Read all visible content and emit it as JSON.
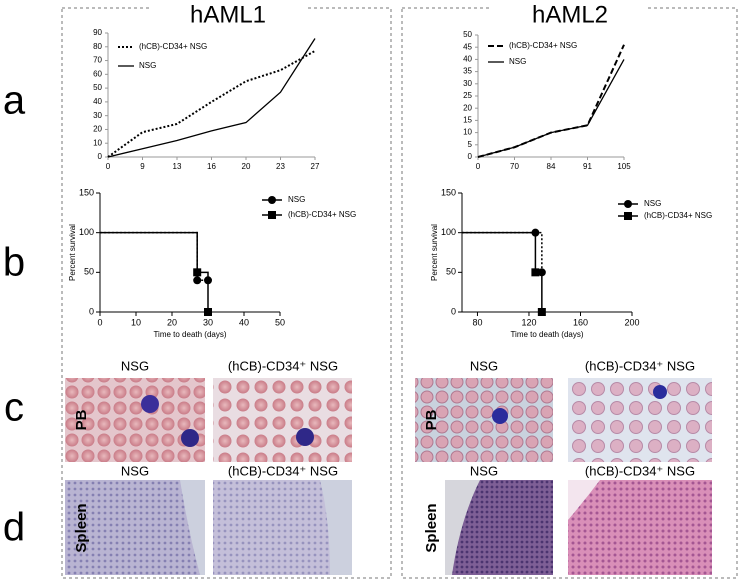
{
  "titles": [
    "hAML1",
    "hAML2"
  ],
  "row_labels": [
    "a",
    "b",
    "c",
    "d"
  ],
  "chart_data": [
    {
      "type": "line",
      "categories": [
        "0",
        "9",
        "13",
        "16",
        "20",
        "23",
        "27"
      ],
      "ylim": [
        0,
        90
      ],
      "yticks": [
        0,
        10,
        20,
        30,
        40,
        50,
        60,
        70,
        80,
        90
      ],
      "series": [
        {
          "name": "(hCB)-CD34+ NSG",
          "color": "#000000",
          "line_style": "dotted",
          "values": [
            0,
            18,
            24,
            40,
            55,
            63,
            77
          ]
        },
        {
          "name": "NSG",
          "color": "#000000",
          "line_style": "solid",
          "values": [
            0,
            6,
            12,
            19,
            25,
            47,
            86
          ]
        }
      ]
    },
    {
      "type": "line",
      "categories": [
        "0",
        "70",
        "84",
        "91",
        "105"
      ],
      "ylim": [
        0,
        50
      ],
      "yticks": [
        0,
        5,
        10,
        15,
        20,
        25,
        30,
        35,
        40,
        45,
        50
      ],
      "series": [
        {
          "name": "(hCB)-CD34+ NSG",
          "color": "#000000",
          "line_style": "dashed",
          "values": [
            0,
            4,
            10,
            13,
            46
          ]
        },
        {
          "name": "NSG",
          "color": "#000000",
          "line_style": "solid",
          "values": [
            0,
            4,
            10,
            13,
            40
          ]
        }
      ]
    },
    {
      "type": "step",
      "xlabel": "Time to death (days)",
      "ylabel": "Percent survival",
      "xlim": [
        0,
        50
      ],
      "xticks": [
        0,
        10,
        20,
        30,
        40,
        50
      ],
      "ylim": [
        0,
        150
      ],
      "yticks": [
        0,
        50,
        100,
        150
      ],
      "series": [
        {
          "name": "NSG",
          "color": "#000000",
          "marker": "circle",
          "line_style": "dotted",
          "x": [
            0,
            27,
            30
          ],
          "values": [
            100,
            40,
            40
          ]
        },
        {
          "name": "(hCB)-CD34+ NSG",
          "color": "#000000",
          "marker": "square",
          "line_style": "solid",
          "x": [
            0,
            27,
            30
          ],
          "values": [
            100,
            50,
            0
          ]
        }
      ]
    },
    {
      "type": "step",
      "xlabel": "Time to death (days)",
      "ylabel": "Percent survival",
      "xlim": [
        68,
        200
      ],
      "xticks": [
        80,
        120,
        160,
        200
      ],
      "ylim": [
        0,
        150
      ],
      "yticks": [
        0,
        50,
        100,
        150
      ],
      "series": [
        {
          "name": "NSG",
          "color": "#000000",
          "marker": "circle",
          "line_style": "dotted",
          "x": [
            68,
            125,
            130
          ],
          "values": [
            100,
            100,
            50
          ]
        },
        {
          "name": "(hCB)-CD34+ NSG",
          "color": "#000000",
          "marker": "square",
          "line_style": "solid",
          "x": [
            68,
            125,
            130
          ],
          "values": [
            100,
            50,
            0
          ]
        }
      ]
    }
  ],
  "micrographs": [
    {
      "tissue": "PB",
      "labels": [
        "NSG",
        "(hCB)-CD34⁺ NSG",
        "NSG",
        "(hCB)-CD34⁺ NSG"
      ]
    },
    {
      "tissue": "Spleen",
      "labels": [
        "NSG",
        "(hCB)-CD34⁺ NSG",
        "NSG",
        "(hCB)-CD34⁺ NSG"
      ]
    }
  ]
}
